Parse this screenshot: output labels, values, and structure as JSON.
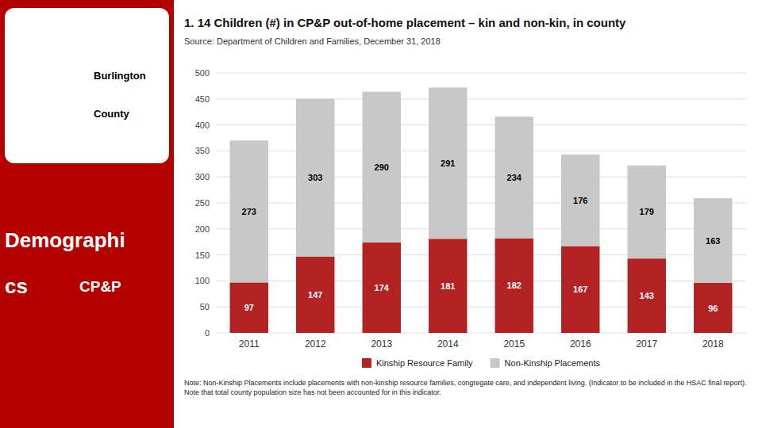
{
  "chart_data": {
    "type": "bar",
    "title": "1. 14 Children (#) in CP&P out-of-home placement – kin and non-kin, in county",
    "subtitle": "Source: Department of Children and Families, December 31, 2018",
    "categories": [
      "2011",
      "2012",
      "2013",
      "2014",
      "2015",
      "2016",
      "2017",
      "2018"
    ],
    "series": [
      {
        "name": "Kinship Resource Family",
        "color": "#b22222",
        "values": [
          97,
          147,
          174,
          181,
          182,
          167,
          143,
          96
        ]
      },
      {
        "name": "Non-Kinship Placements",
        "color": "#c8c8c8",
        "values": [
          273,
          303,
          290,
          291,
          234,
          176,
          179,
          163
        ]
      }
    ],
    "stacked": true,
    "data_labels": true,
    "ylim": [
      0,
      500
    ],
    "yticks": [
      0,
      50,
      100,
      150,
      200,
      250,
      300,
      350,
      400,
      450,
      500
    ],
    "grid": true,
    "legend": "bottom",
    "annotations": [
      "Burlington",
      "County",
      "Demographi",
      "cs",
      "CP&P",
      "Note: Non-Kinship Placements include placements with non-kinship resource families, congregate care, and independent living. (Indicator to be included in the HSAC final report). Note that total county population size has not been accounted for in this indicator."
    ]
  }
}
